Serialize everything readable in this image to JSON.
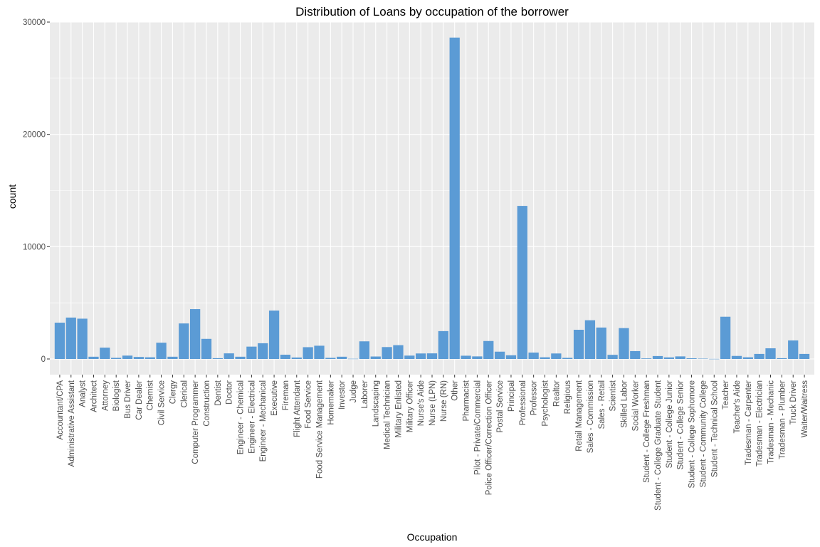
{
  "chart_data": {
    "type": "bar",
    "title": "Distribution of Loans by occupation of the borrower",
    "xlabel": "Occupation",
    "ylabel": "count",
    "ylim": [
      -1500,
      30000
    ],
    "yticks": [
      0,
      10000,
      20000,
      30000
    ],
    "grid": true,
    "bar_color": "#5b9bd5",
    "panel_color": "#ebebeb",
    "grid_color": "#ffffff",
    "categories": [
      "Accountant/CPA",
      "Administrative Assistant",
      "Analyst",
      "Architect",
      "Attorney",
      "Biologist",
      "Bus Driver",
      "Car Dealer",
      "Chemist",
      "Civil Service",
      "Clergy",
      "Clerical",
      "Computer Programmer",
      "Construction",
      "Dentist",
      "Doctor",
      "Engineer - Chemical",
      "Engineer - Electrical",
      "Engineer - Mechanical",
      "Executive",
      "Fireman",
      "Flight Attendant",
      "Food Service",
      "Food Service Management",
      "Homemaker",
      "Investor",
      "Judge",
      "Laborer",
      "Landscaping",
      "Medical Technician",
      "Military Enlisted",
      "Military Officer",
      "Nurse's Aide",
      "Nurse (LPN)",
      "Nurse (RN)",
      "Other",
      "Pharmacist",
      "Pilot - Private/Commercial",
      "Police Officer/Correction Officer",
      "Postal Service",
      "Principal",
      "Professional",
      "Professor",
      "Psychologist",
      "Realtor",
      "Religious",
      "Retail Management",
      "Sales - Commission",
      "Sales - Retail",
      "Scientist",
      "Skilled Labor",
      "Social Worker",
      "Student - College Freshman",
      "Student - College Graduate Student",
      "Student - College Junior",
      "Student - College Senior",
      "Student - College Sophomore",
      "Student - Community College",
      "Student - Technical School",
      "Teacher",
      "Teacher's Aide",
      "Tradesman - Carpenter",
      "Tradesman - Electrician",
      "Tradesman - Mechanic",
      "Tradesman - Plumber",
      "Truck Driver",
      "Waiter/Waitress"
    ],
    "values": [
      3233,
      3688,
      3588,
      200,
      1010,
      100,
      300,
      180,
      150,
      1450,
      200,
      3164,
      4438,
      1790,
      70,
      500,
      200,
      1100,
      1400,
      4311,
      380,
      130,
      1050,
      1180,
      100,
      200,
      20,
      1570,
      220,
      1060,
      1230,
      300,
      490,
      500,
      2480,
      28620,
      290,
      230,
      1600,
      650,
      330,
      13630,
      570,
      150,
      490,
      100,
      2600,
      3450,
      2800,
      370,
      2750,
      700,
      50,
      260,
      140,
      230,
      60,
      30,
      10,
      3760,
      270,
      150,
      450,
      950,
      70,
      1650,
      450
    ]
  }
}
